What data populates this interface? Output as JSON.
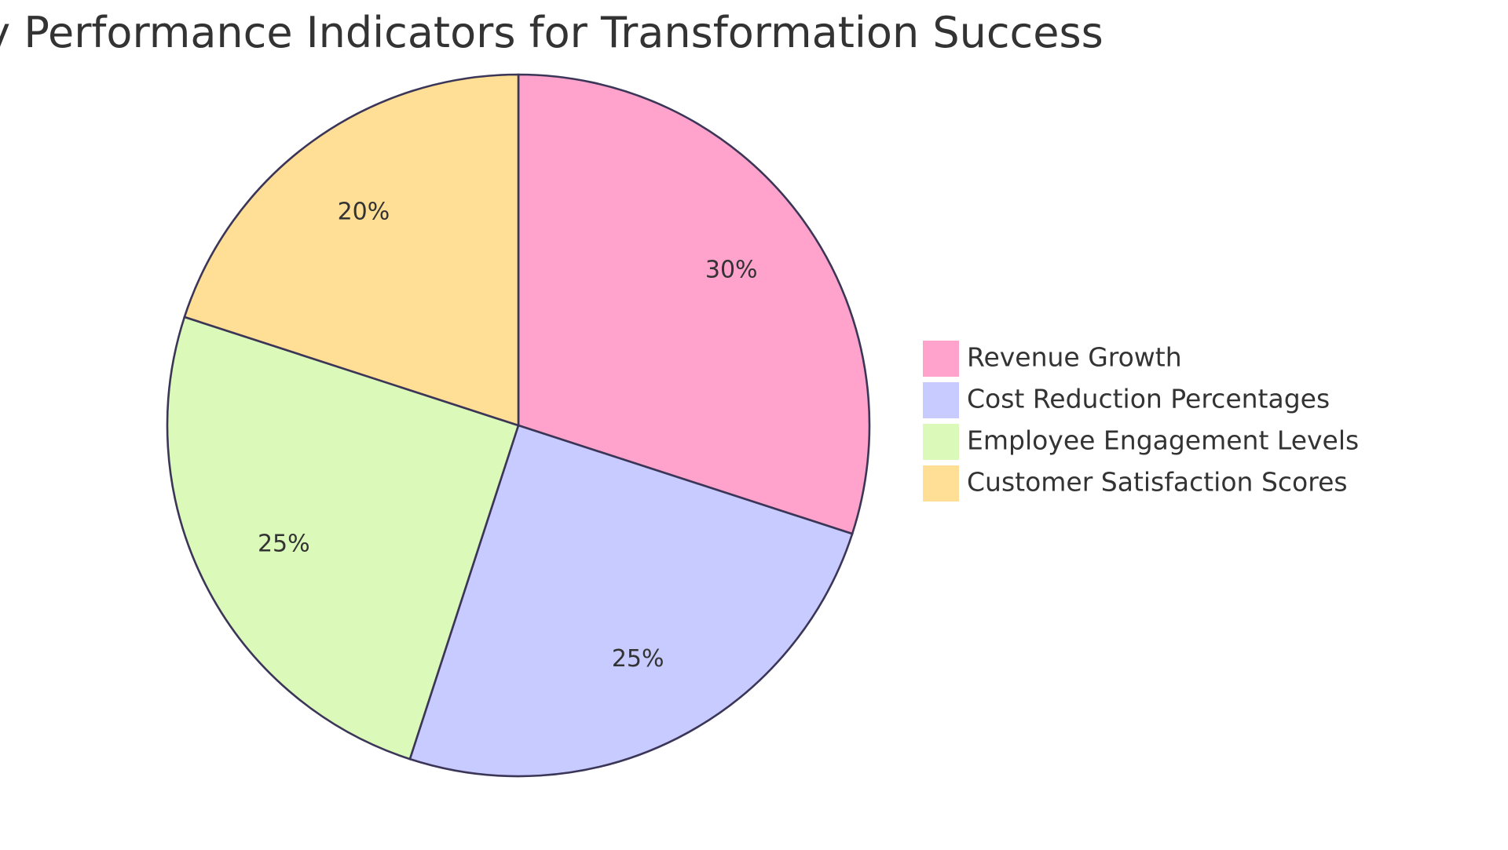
{
  "chart_data": {
    "type": "pie",
    "title": "Key Performance Indicators for Transformation Success",
    "start_angle_deg": 0,
    "direction": "clockwise",
    "legend_position": "right",
    "slices": [
      {
        "label": "Revenue Growth",
        "value": 30,
        "display": "30%",
        "color": "#ffa3cc"
      },
      {
        "label": "Cost Reduction Percentages",
        "value": 25,
        "display": "25%",
        "color": "#c8cbff"
      },
      {
        "label": "Employee Engagement Levels",
        "value": 25,
        "display": "25%",
        "color": "#dbf9b8"
      },
      {
        "label": "Customer Satisfaction Scores",
        "value": 20,
        "display": "20%",
        "color": "#fedf95"
      }
    ]
  }
}
